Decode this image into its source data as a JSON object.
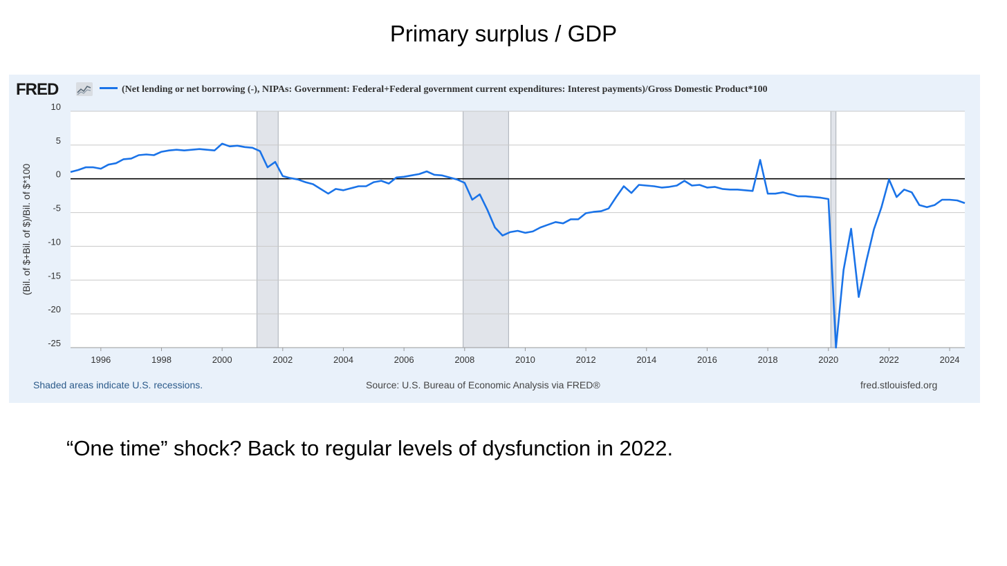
{
  "slide": {
    "title": "Primary surplus / GDP",
    "caption": "“One time” shock? Back to regular levels of dysfunction in 2022."
  },
  "fred": {
    "logo_text": "FRED",
    "logo_icon": "line-chart-icon",
    "shaded_note": "Shaded areas indicate U.S. recessions.",
    "source": "Source: U.S. Bureau of Economic Analysis via FRED®",
    "site": "fred.stlouisfed.org"
  },
  "colors": {
    "series": "#1a73e8",
    "panel_bg": "#e9f1fa",
    "recession": "#e1e4ea",
    "grid": "#c8c8c8"
  },
  "chart_data": {
    "type": "line",
    "title": "",
    "legend_position": "top-left",
    "xlabel": "",
    "ylabel": "(Bil. of $+Bil. of $)/Bil. of $*100",
    "xlim": [
      1995.0,
      2024.5
    ],
    "ylim": [
      -25,
      10
    ],
    "yticks": [
      10,
      5,
      0,
      -5,
      -10,
      -15,
      -20,
      -25
    ],
    "xticks": [
      1996,
      1998,
      2000,
      2002,
      2004,
      2006,
      2008,
      2010,
      2012,
      2014,
      2016,
      2018,
      2020,
      2022,
      2024
    ],
    "grid": true,
    "zero_line": true,
    "recessions": [
      [
        2001.15,
        2001.85
      ],
      [
        2007.95,
        2009.45
      ],
      [
        2020.08,
        2020.25
      ]
    ],
    "series": [
      {
        "name": "(Net lending or net borrowing (-), NIPAs: Government: Federal+Federal government current expenditures: Interest payments)/Gross Domestic Product*100",
        "x": [
          1995.0,
          1995.25,
          1995.5,
          1995.75,
          1996.0,
          1996.25,
          1996.5,
          1996.75,
          1997.0,
          1997.25,
          1997.5,
          1997.75,
          1998.0,
          1998.25,
          1998.5,
          1998.75,
          1999.0,
          1999.25,
          1999.5,
          1999.75,
          2000.0,
          2000.25,
          2000.5,
          2000.75,
          2001.0,
          2001.25,
          2001.5,
          2001.75,
          2002.0,
          2002.25,
          2002.5,
          2002.75,
          2003.0,
          2003.25,
          2003.5,
          2003.75,
          2004.0,
          2004.25,
          2004.5,
          2004.75,
          2005.0,
          2005.25,
          2005.5,
          2005.75,
          2006.0,
          2006.25,
          2006.5,
          2006.75,
          2007.0,
          2007.25,
          2007.5,
          2007.75,
          2008.0,
          2008.25,
          2008.5,
          2008.75,
          2009.0,
          2009.25,
          2009.5,
          2009.75,
          2010.0,
          2010.25,
          2010.5,
          2010.75,
          2011.0,
          2011.25,
          2011.5,
          2011.75,
          2012.0,
          2012.25,
          2012.5,
          2012.75,
          2013.0,
          2013.25,
          2013.5,
          2013.75,
          2014.0,
          2014.25,
          2014.5,
          2014.75,
          2015.0,
          2015.25,
          2015.5,
          2015.75,
          2016.0,
          2016.25,
          2016.5,
          2016.75,
          2017.0,
          2017.25,
          2017.5,
          2017.75,
          2018.0,
          2018.25,
          2018.5,
          2018.75,
          2019.0,
          2019.25,
          2019.5,
          2019.75,
          2020.0,
          2020.25,
          2020.5,
          2020.75,
          2021.0,
          2021.25,
          2021.5,
          2021.75,
          2022.0,
          2022.25,
          2022.5,
          2022.75,
          2023.0,
          2023.25,
          2023.5,
          2023.75,
          2024.0,
          2024.25,
          2024.5
        ],
        "values": [
          1.0,
          1.3,
          1.7,
          1.7,
          1.5,
          2.1,
          2.3,
          2.9,
          3.0,
          3.5,
          3.6,
          3.5,
          4.0,
          4.2,
          4.3,
          4.2,
          4.3,
          4.4,
          4.3,
          4.2,
          5.2,
          4.8,
          4.9,
          4.7,
          4.6,
          4.1,
          1.7,
          2.5,
          0.4,
          0.1,
          -0.1,
          -0.5,
          -0.8,
          -1.5,
          -2.2,
          -1.5,
          -1.7,
          -1.4,
          -1.1,
          -1.1,
          -0.5,
          -0.3,
          -0.7,
          0.2,
          0.3,
          0.5,
          0.7,
          1.1,
          0.6,
          0.5,
          0.2,
          -0.1,
          -0.6,
          -3.1,
          -2.3,
          -4.6,
          -7.2,
          -8.4,
          -7.9,
          -7.7,
          -8.0,
          -7.8,
          -7.2,
          -6.8,
          -6.4,
          -6.6,
          -6.0,
          -6.0,
          -5.1,
          -4.9,
          -4.8,
          -4.4,
          -2.7,
          -1.1,
          -2.1,
          -0.9,
          -1.0,
          -1.1,
          -1.3,
          -1.2,
          -1.0,
          -0.3,
          -1.0,
          -0.9,
          -1.3,
          -1.2,
          -1.5,
          -1.6,
          -1.6,
          -1.7,
          -1.8,
          2.8,
          -2.2,
          -2.2,
          -2.0,
          -2.3,
          -2.6,
          -2.6,
          -2.7,
          -2.8,
          -3.0,
          -25.0,
          -13.5,
          -7.4,
          -17.5,
          -12.2,
          -7.5,
          -4.2,
          -0.1,
          -2.7,
          -1.6,
          -2.0,
          -3.9,
          -4.2,
          -3.9,
          -3.1,
          -3.1,
          -3.2,
          -3.6
        ]
      }
    ]
  }
}
